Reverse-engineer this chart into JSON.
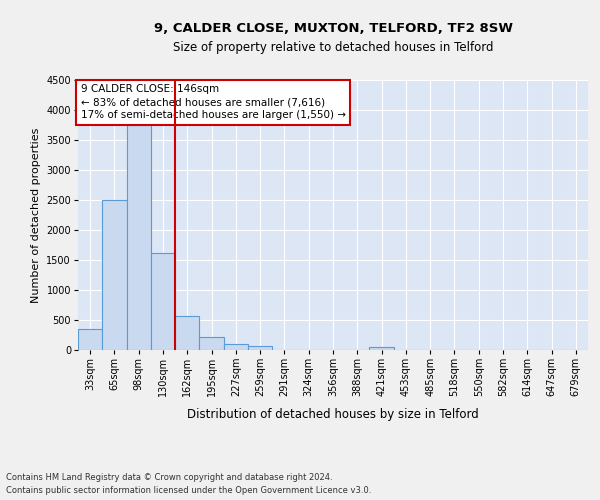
{
  "title_line1": "9, CALDER CLOSE, MUXTON, TELFORD, TF2 8SW",
  "title_line2": "Size of property relative to detached houses in Telford",
  "xlabel": "Distribution of detached houses by size in Telford",
  "ylabel": "Number of detached properties",
  "categories": [
    "33sqm",
    "65sqm",
    "98sqm",
    "130sqm",
    "162sqm",
    "195sqm",
    "227sqm",
    "259sqm",
    "291sqm",
    "324sqm",
    "356sqm",
    "388sqm",
    "421sqm",
    "453sqm",
    "485sqm",
    "518sqm",
    "550sqm",
    "582sqm",
    "614sqm",
    "647sqm",
    "679sqm"
  ],
  "values": [
    350,
    2500,
    3750,
    1625,
    575,
    225,
    100,
    60,
    0,
    0,
    0,
    0,
    55,
    0,
    0,
    0,
    0,
    0,
    0,
    0,
    0
  ],
  "bar_color": "#c9d9f0",
  "bar_edge_color": "#5b9bd5",
  "vline_color": "#cc0000",
  "vline_x": 3.5,
  "ylim": [
    0,
    4500
  ],
  "yticks": [
    0,
    500,
    1000,
    1500,
    2000,
    2500,
    3000,
    3500,
    4000,
    4500
  ],
  "annotation_text": "9 CALDER CLOSE: 146sqm\n← 83% of detached houses are smaller (7,616)\n17% of semi-detached houses are larger (1,550) →",
  "annotation_box_facecolor": "#ffffff",
  "annotation_box_edgecolor": "#cc0000",
  "footnote": "Contains HM Land Registry data © Crown copyright and database right 2024.\nContains public sector information licensed under the Open Government Licence v3.0.",
  "fig_facecolor": "#f0f0f0",
  "ax_facecolor": "#dce6f5",
  "grid_color": "#ffffff",
  "title1_fontsize": 9.5,
  "title2_fontsize": 8.5,
  "ylabel_fontsize": 8,
  "xlabel_fontsize": 8.5,
  "tick_fontsize": 7,
  "footnote_fontsize": 6,
  "ann_fontsize": 7.5
}
